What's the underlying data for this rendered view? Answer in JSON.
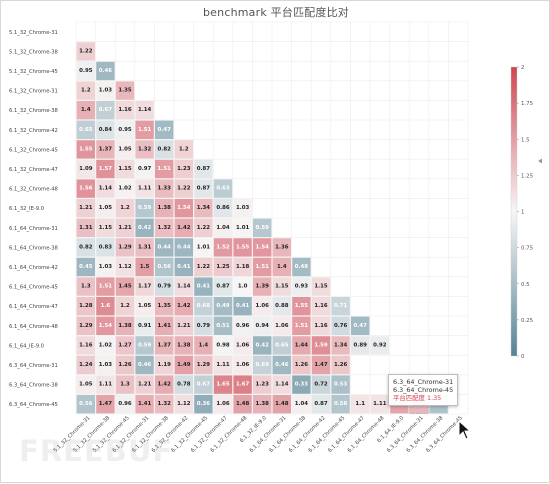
{
  "page": {
    "title": "benchmark 平台匹配度比对"
  },
  "watermark": {
    "text": "FREEBUF"
  },
  "tooltip": {
    "line1": "6.3_64_Chrome-31",
    "line2": "6.3_64_Chrome-45",
    "label": "平台匹配度",
    "value": "1.35"
  },
  "chart_data": {
    "type": "heatmap",
    "title": "benchmark 平台匹配度比对",
    "labels": [
      "5.1_32_Chrome-31",
      "5.1_32_Chrome-38",
      "5.1_32_Chrome-45",
      "6.1_32_Chrome-31",
      "6.1_32_Chrome-38",
      "6.1_32_Chrome-42",
      "6.1_32_Chrome-45",
      "6.1_32_Chrome-47",
      "6.1_32_Chrome-48",
      "6.1_32_IE-9.0",
      "6.1_64_Chrome-31",
      "6.1_64_Chrome-38",
      "6.1_64_Chrome-42",
      "6.1_64_Chrome-45",
      "6.1_64_Chrome-47",
      "6.1_64_Chrome-48",
      "6.1_64_IE-9.0",
      "6.3_64_Chrome-31",
      "6.3_64_Chrome-38",
      "6.3_64_Chrome-45"
    ],
    "values": [
      [],
      [
        1.22
      ],
      [
        0.95,
        0.46
      ],
      [
        1.2,
        1.03,
        1.35
      ],
      [
        1.4,
        0.67,
        1.16,
        1.14
      ],
      [
        0.65,
        0.84,
        0.95,
        1.51,
        0.47
      ],
      [
        1.55,
        1.37,
        1.05,
        1.32,
        0.82,
        1.2
      ],
      [
        1.09,
        1.57,
        1.15,
        0.97,
        1.51,
        1.23,
        0.87
      ],
      [
        1.56,
        1.14,
        1.02,
        1.11,
        1.33,
        1.22,
        0.87,
        0.63
      ],
      [
        1.21,
        1.05,
        1.2,
        0.59,
        1.38,
        1.54,
        1.34,
        0.86,
        1.03
      ],
      [
        1.31,
        1.15,
        1.21,
        0.42,
        1.32,
        1.42,
        1.22,
        1.04,
        1.01,
        0.59
      ],
      [
        0.82,
        0.83,
        1.29,
        1.31,
        0.44,
        0.44,
        1.01,
        1.52,
        1.55,
        1.54,
        1.36
      ],
      [
        0.45,
        1.03,
        1.12,
        1.5,
        0.56,
        0.41,
        1.22,
        1.25,
        1.18,
        1.51,
        1.4,
        0.48
      ],
      [
        1.3,
        1.51,
        1.45,
        1.17,
        0.79,
        1.14,
        0.41,
        0.87,
        1.0,
        1.39,
        1.15,
        0.93,
        1.15
      ],
      [
        1.28,
        1.6,
        1.2,
        1.05,
        1.35,
        1.42,
        0.68,
        0.49,
        0.41,
        1.06,
        0.88,
        1.55,
        1.16,
        0.71
      ],
      [
        1.29,
        1.54,
        1.38,
        0.91,
        1.41,
        1.21,
        0.79,
        0.51,
        0.96,
        0.94,
        1.06,
        1.51,
        1.16,
        0.76,
        0.47
      ],
      [
        1.16,
        1.02,
        1.27,
        0.59,
        1.37,
        1.38,
        1.4,
        0.98,
        1.06,
        0.42,
        0.65,
        1.44,
        1.59,
        1.34,
        0.89,
        0.92
      ],
      [
        1.24,
        1.03,
        1.26,
        0.46,
        1.19,
        1.49,
        1.29,
        1.11,
        1.06,
        0.69,
        0.46,
        1.26,
        1.47,
        1.26,
        null,
        null,
        null
      ],
      [
        1.05,
        1.11,
        1.3,
        1.21,
        1.42,
        0.78,
        0.67,
        1.65,
        1.67,
        1.23,
        1.14,
        0.33,
        0.72,
        0.53,
        null,
        null,
        null,
        null
      ],
      [
        0.56,
        1.47,
        0.96,
        1.41,
        1.32,
        1.12,
        0.36,
        1.06,
        1.48,
        1.38,
        1.48,
        1.04,
        0.87,
        0.58,
        1.1,
        1.11,
        1.46,
        1.35,
        0.55
      ]
    ],
    "colorbar": {
      "min": 0,
      "max": 2,
      "ticks": [
        "0",
        "0.25",
        "0.5",
        "0.75",
        "1",
        "1.25",
        "1.5",
        "1.75",
        "2"
      ]
    },
    "grid": true
  }
}
